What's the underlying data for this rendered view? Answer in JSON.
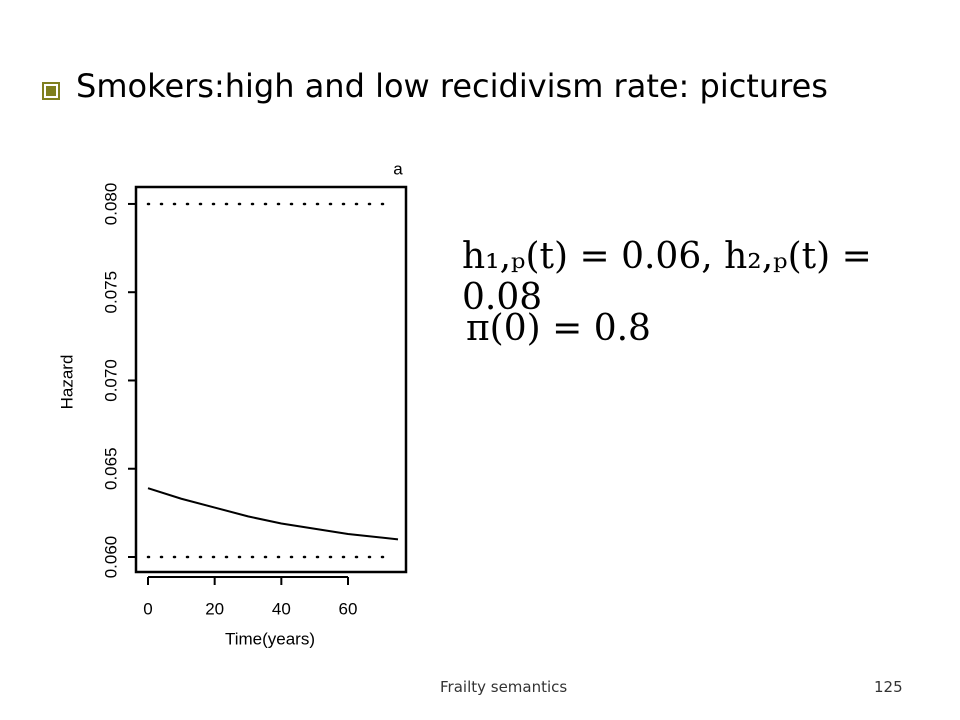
{
  "title": "Smokers:high and low recidivism rate: pictures",
  "equations": [
    "h₁,ₚ(t) = 0.06,  h₂,ₚ(t) = 0.08",
    "π(0) = 0.8"
  ],
  "footer": "Frailty semantics",
  "page_number": "125",
  "chart_data": {
    "type": "line",
    "panel_label": "a",
    "x_label": "Time(years)",
    "y_label": "Hazard",
    "series": [
      {
        "name": "Hazard",
        "color": "#000000",
        "x": [
          0,
          10,
          20,
          30,
          40,
          50,
          60,
          75
        ],
        "values": [
          0.0639,
          0.0633,
          0.0628,
          0.0623,
          0.0619,
          0.0616,
          0.0613,
          0.061
        ]
      }
    ],
    "reference_lines": [
      0.06,
      0.08
    ],
    "xlim": [
      -3.6,
      77.4
    ],
    "ylim": [
      0.05915,
      0.08096
    ],
    "xticks": [
      0,
      20,
      40,
      60
    ],
    "yticks": [
      {
        "value": 0.06,
        "label": "0.060"
      },
      {
        "value": 0.065,
        "label": "0.065"
      },
      {
        "value": 0.07,
        "label": "0.070"
      },
      {
        "value": 0.075,
        "label": "0.075"
      },
      {
        "value": 0.08,
        "label": "0.080"
      }
    ]
  }
}
